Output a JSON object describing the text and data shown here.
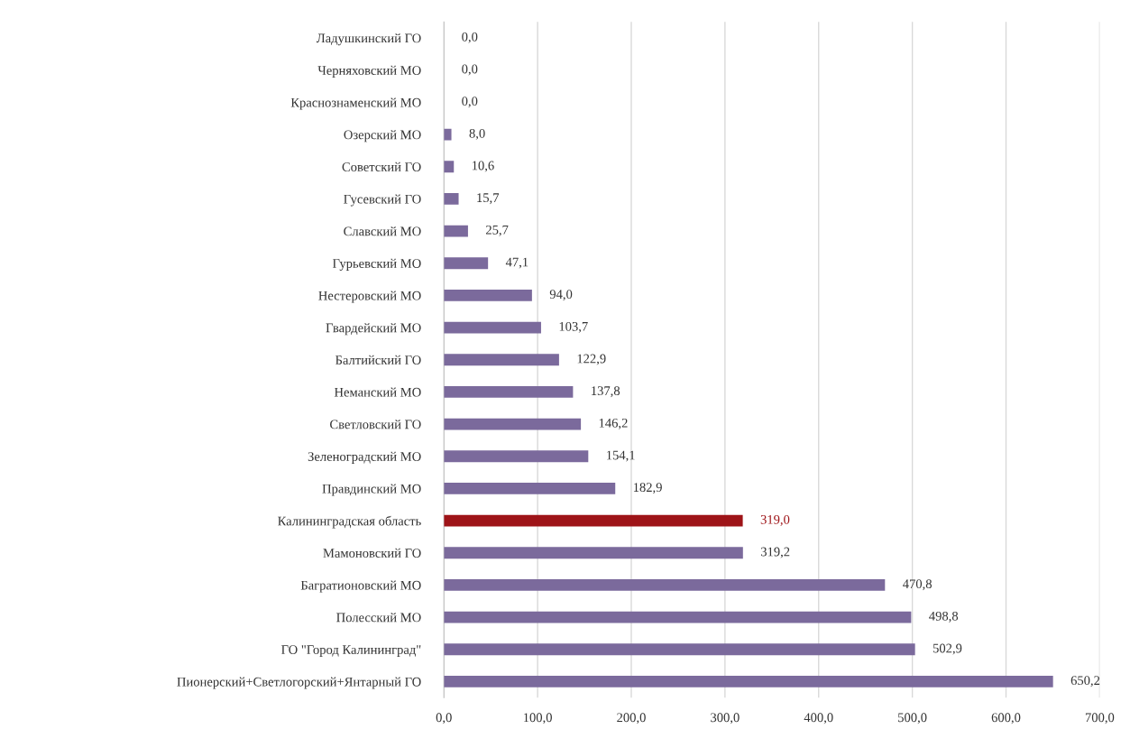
{
  "chart_data": {
    "type": "bar",
    "orientation": "horizontal",
    "categories": [
      "Ладушкинский ГО",
      "Черняховский МО",
      "Краснознаменский МО",
      "Озерский МО",
      "Советский ГО",
      "Гусевский ГО",
      "Славский МО",
      "Гурьевский МО",
      "Нестеровский МО",
      "Гвардейский МО",
      "Балтийский ГО",
      "Неманский МО",
      "Светловский ГО",
      "Зеленоградский МО",
      "Правдинский МО",
      "Калининградская область",
      "Мамоновский ГО",
      "Багратионовский МО",
      "Полесский МО",
      "ГО \"Город Калининград\"",
      "Пионерский+Светлогорский+Янтарный ГО"
    ],
    "values": [
      0.0,
      0.0,
      0.0,
      8.0,
      10.6,
      15.7,
      25.7,
      47.1,
      94.0,
      103.7,
      122.9,
      137.8,
      146.2,
      154.1,
      182.9,
      319.0,
      319.2,
      470.8,
      498.8,
      502.9,
      650.2
    ],
    "value_labels": [
      "0,0",
      "0,0",
      "0,0",
      "8,0",
      "10,6",
      "15,7",
      "25,7",
      "47,1",
      "94,0",
      "103,7",
      "122,9",
      "137,8",
      "146,2",
      "154,1",
      "182,9",
      "319,0",
      "319,2",
      "470,8",
      "498,8",
      "502,9",
      "650,2"
    ],
    "colors": [
      "#7b6a9c",
      "#7b6a9c",
      "#7b6a9c",
      "#7b6a9c",
      "#7b6a9c",
      "#7b6a9c",
      "#7b6a9c",
      "#7b6a9c",
      "#7b6a9c",
      "#7b6a9c",
      "#7b6a9c",
      "#7b6a9c",
      "#7b6a9c",
      "#7b6a9c",
      "#7b6a9c",
      "#9e1418",
      "#7b6a9c",
      "#7b6a9c",
      "#7b6a9c",
      "#7b6a9c",
      "#7b6a9c"
    ],
    "xlim": [
      0,
      700
    ],
    "xticks": [
      {
        "value": 0,
        "label": "0,0"
      },
      {
        "value": 100,
        "label": "100,0"
      },
      {
        "value": 200,
        "label": "200,0"
      },
      {
        "value": 300,
        "label": "300,0"
      },
      {
        "value": 400,
        "label": "400,0"
      },
      {
        "value": 500,
        "label": "500,0"
      },
      {
        "value": 600,
        "label": "600,0"
      },
      {
        "value": 700,
        "label": "700,0"
      }
    ],
    "grid": "x"
  }
}
